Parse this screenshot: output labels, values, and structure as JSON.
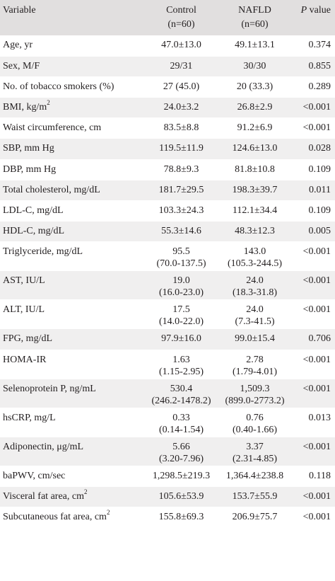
{
  "header": {
    "variable": "Variable",
    "control": "Control",
    "control_n": "(n=60)",
    "nafld": "NAFLD",
    "nafld_n": "(n=60)",
    "p_italic": "P",
    "p_rest": " value"
  },
  "rows": [
    {
      "label": "Age, yr",
      "control": "47.0±13.0",
      "nafld": "49.1±13.1",
      "p": "0.374"
    },
    {
      "label": "Sex, M/F",
      "control": "29/31",
      "nafld": "30/30",
      "p": "0.855"
    },
    {
      "label": "No. of tobacco smokers (%)",
      "control": "27 (45.0)",
      "nafld": "20 (33.3)",
      "p": "0.289"
    },
    {
      "label": "BMI, kg/m",
      "label_sup": "2",
      "control": "24.0±3.2",
      "nafld": "26.8±2.9",
      "p": "<0.001"
    },
    {
      "label": "Waist circumference, cm",
      "control": "83.5±8.8",
      "nafld": "91.2±6.9",
      "p": "<0.001"
    },
    {
      "label": "SBP, mm Hg",
      "control": "119.5±11.9",
      "nafld": "124.6±13.0",
      "p": "0.028"
    },
    {
      "label": "DBP, mm Hg",
      "control": "78.8±9.3",
      "nafld": "81.8±10.8",
      "p": "0.109"
    },
    {
      "label": "Total cholesterol, mg/dL",
      "control": "181.7±29.5",
      "nafld": "198.3±39.7",
      "p": "0.011"
    },
    {
      "label": "LDL-C, mg/dL",
      "control": "103.3±24.3",
      "nafld": "112.1±34.4",
      "p": "0.109"
    },
    {
      "label": "HDL-C, mg/dL",
      "control": "55.3±14.6",
      "nafld": "48.3±12.3",
      "p": "0.005"
    },
    {
      "label": "Triglyceride, mg/dL",
      "control": "95.5",
      "control_2": "(70.0-137.5)",
      "nafld": "143.0",
      "nafld_2": "(105.3-244.5)",
      "p": "<0.001"
    },
    {
      "label": "AST, IU/L",
      "control": "19.0",
      "control_2": "(16.0-23.0)",
      "nafld": "24.0",
      "nafld_2": "(18.3-31.8)",
      "p": "<0.001"
    },
    {
      "label": "ALT, IU/L",
      "control": "17.5",
      "control_2": "(14.0-22.0)",
      "nafld": "24.0",
      "nafld_2": "(7.3-41.5)",
      "p": "<0.001"
    },
    {
      "label": "FPG, mg/dL",
      "control": "97.9±16.0",
      "nafld": "99.0±15.4",
      "p": "0.706"
    },
    {
      "label": "HOMA-IR",
      "control": "1.63",
      "control_2": "(1.15-2.95)",
      "nafld": "2.78",
      "nafld_2": "(1.79-4.01)",
      "p": "<0.001"
    },
    {
      "label": "Selenoprotein P, ng/mL",
      "control": "530.4",
      "control_2": "(246.2-1478.2)",
      "nafld": "1,509.3",
      "nafld_2": "(899.0-2773.2)",
      "p": "<0.001"
    },
    {
      "label": "hsCRP, mg/L",
      "control": "0.33",
      "control_2": "(0.14-1.54)",
      "nafld": "0.76",
      "nafld_2": "(0.40-1.66)",
      "p": "0.013"
    },
    {
      "label": "Adiponectin, μg/mL",
      "control": "5.66",
      "control_2": "(3.20-7.96)",
      "nafld": "3.37",
      "nafld_2": "(2.31-4.85)",
      "p": "<0.001"
    },
    {
      "label": "baPWV, cm/sec",
      "control": "1,298.5±219.3",
      "nafld": "1,364.4±238.8",
      "p": "0.118"
    },
    {
      "label": "Visceral fat area, cm",
      "label_sup": "2",
      "control": "105.6±53.9",
      "nafld": "153.7±55.9",
      "p": "<0.001"
    },
    {
      "label": "Subcutaneous fat area, cm",
      "label_sup": "2",
      "control": "155.8±69.3",
      "nafld": "206.9±75.7",
      "p": "<0.001"
    }
  ]
}
